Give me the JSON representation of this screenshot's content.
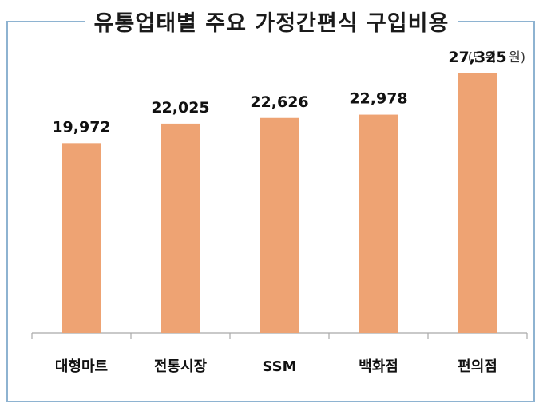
{
  "header": {
    "title": "유통업태별 주요 가정간편식 구입비용",
    "unit_label": "(단위 : 원)"
  },
  "colors": {
    "bar": "#eea373",
    "frame": "#8eb3d1",
    "axis": "#a9a9a9"
  },
  "chart_data": {
    "type": "bar",
    "title": "유통업태별 주요 가정간편식 구입비용",
    "unit": "(단위 : 원)",
    "categories": [
      "대형마트",
      "전통시장",
      "SSM",
      "백화점",
      "편의점"
    ],
    "values": [
      19972,
      22025,
      22626,
      22978,
      27325
    ],
    "value_labels": [
      "19,972",
      "22,025",
      "22,626",
      "22,978",
      "27,325"
    ],
    "ylim": [
      0,
      30000
    ],
    "grid": false,
    "legend": "none"
  }
}
